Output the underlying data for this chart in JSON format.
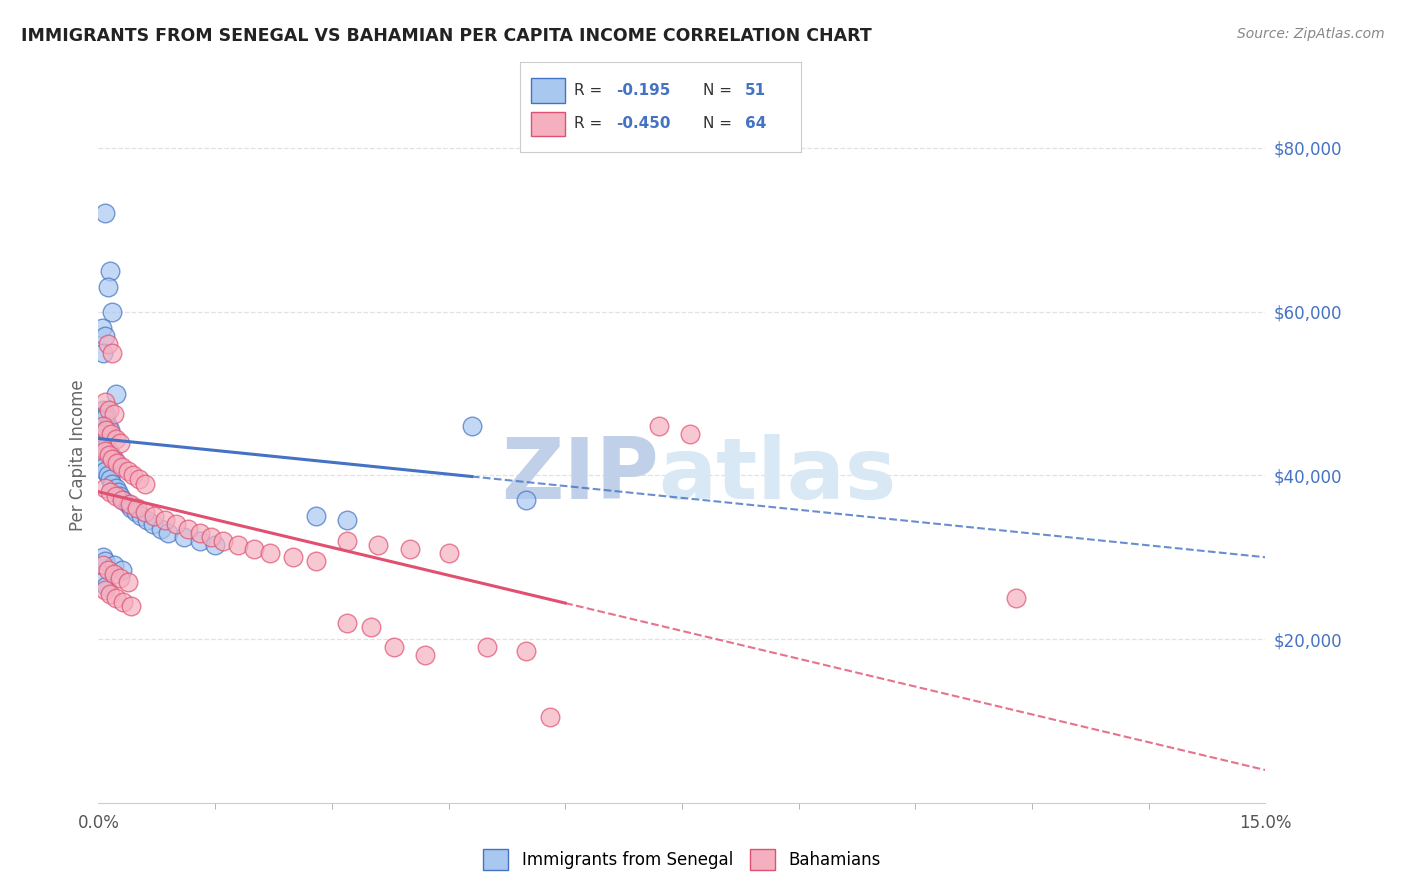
{
  "title": "IMMIGRANTS FROM SENEGAL VS BAHAMIAN PER CAPITA INCOME CORRELATION CHART",
  "source": "Source: ZipAtlas.com",
  "ylabel": "Per Capita Income",
  "xlim": [
    0.0,
    15.0
  ],
  "ylim": [
    0,
    85000
  ],
  "yticks": [
    0,
    20000,
    40000,
    60000,
    80000
  ],
  "ytick_labels": [
    "",
    "$20,000",
    "$40,000",
    "$60,000",
    "$80,000"
  ],
  "blue_color": "#a8c8f0",
  "pink_color": "#f5b0c0",
  "blue_line_color": "#4472c4",
  "pink_line_color": "#e05070",
  "blue_trend_x0": 0.0,
  "blue_trend_y0": 44500,
  "blue_trend_x1": 15.0,
  "blue_trend_y1": 30000,
  "blue_solid_end": 4.8,
  "pink_trend_x0": 0.0,
  "pink_trend_y0": 38000,
  "pink_trend_x1": 15.0,
  "pink_trend_y1": 4000,
  "pink_solid_end": 6.0,
  "blue_scatter": [
    [
      0.08,
      72000
    ],
    [
      0.15,
      65000
    ],
    [
      0.12,
      63000
    ],
    [
      0.18,
      60000
    ],
    [
      0.05,
      58000
    ],
    [
      0.08,
      57000
    ],
    [
      0.06,
      55000
    ],
    [
      0.22,
      50000
    ],
    [
      0.06,
      48000
    ],
    [
      0.1,
      47500
    ],
    [
      0.08,
      47000
    ],
    [
      0.12,
      46000
    ],
    [
      0.15,
      45500
    ],
    [
      0.04,
      45000
    ],
    [
      0.06,
      44500
    ],
    [
      0.08,
      44000
    ],
    [
      0.1,
      43500
    ],
    [
      0.13,
      43000
    ],
    [
      0.16,
      42500
    ],
    [
      0.2,
      42000
    ],
    [
      0.04,
      41500
    ],
    [
      0.07,
      41000
    ],
    [
      0.09,
      40500
    ],
    [
      0.12,
      40000
    ],
    [
      0.15,
      39500
    ],
    [
      0.18,
      39000
    ],
    [
      0.22,
      38500
    ],
    [
      0.25,
      38000
    ],
    [
      0.28,
      37500
    ],
    [
      0.32,
      37000
    ],
    [
      0.38,
      36500
    ],
    [
      0.42,
      36000
    ],
    [
      0.48,
      35500
    ],
    [
      0.55,
      35000
    ],
    [
      0.62,
      34500
    ],
    [
      0.7,
      34000
    ],
    [
      0.8,
      33500
    ],
    [
      0.9,
      33000
    ],
    [
      1.1,
      32500
    ],
    [
      1.3,
      32000
    ],
    [
      1.5,
      31500
    ],
    [
      0.06,
      30000
    ],
    [
      0.09,
      29500
    ],
    [
      0.2,
      29000
    ],
    [
      0.3,
      28500
    ],
    [
      2.8,
      35000
    ],
    [
      3.2,
      34500
    ],
    [
      4.8,
      46000
    ],
    [
      0.05,
      27000
    ],
    [
      0.1,
      26500
    ],
    [
      5.5,
      37000
    ]
  ],
  "pink_scatter": [
    [
      0.12,
      56000
    ],
    [
      0.18,
      55000
    ],
    [
      0.08,
      49000
    ],
    [
      0.14,
      48000
    ],
    [
      0.2,
      47500
    ],
    [
      0.06,
      46000
    ],
    [
      0.1,
      45500
    ],
    [
      0.16,
      45000
    ],
    [
      0.22,
      44500
    ],
    [
      0.28,
      44000
    ],
    [
      0.04,
      43500
    ],
    [
      0.08,
      43000
    ],
    [
      0.13,
      42500
    ],
    [
      0.18,
      42000
    ],
    [
      0.24,
      41500
    ],
    [
      0.3,
      41000
    ],
    [
      0.38,
      40500
    ],
    [
      0.45,
      40000
    ],
    [
      0.52,
      39500
    ],
    [
      0.6,
      39000
    ],
    [
      0.08,
      38500
    ],
    [
      0.15,
      38000
    ],
    [
      0.22,
      37500
    ],
    [
      0.3,
      37000
    ],
    [
      0.4,
      36500
    ],
    [
      0.5,
      36000
    ],
    [
      0.6,
      35500
    ],
    [
      0.72,
      35000
    ],
    [
      0.85,
      34500
    ],
    [
      1.0,
      34000
    ],
    [
      1.15,
      33500
    ],
    [
      1.3,
      33000
    ],
    [
      1.45,
      32500
    ],
    [
      1.6,
      32000
    ],
    [
      1.8,
      31500
    ],
    [
      2.0,
      31000
    ],
    [
      2.2,
      30500
    ],
    [
      2.5,
      30000
    ],
    [
      2.8,
      29500
    ],
    [
      0.06,
      29000
    ],
    [
      0.12,
      28500
    ],
    [
      0.2,
      28000
    ],
    [
      0.28,
      27500
    ],
    [
      0.38,
      27000
    ],
    [
      3.2,
      32000
    ],
    [
      3.6,
      31500
    ],
    [
      4.0,
      31000
    ],
    [
      4.5,
      30500
    ],
    [
      0.08,
      26000
    ],
    [
      0.15,
      25500
    ],
    [
      0.22,
      25000
    ],
    [
      0.32,
      24500
    ],
    [
      0.42,
      24000
    ],
    [
      3.2,
      22000
    ],
    [
      3.5,
      21500
    ],
    [
      5.0,
      19000
    ],
    [
      5.5,
      18500
    ],
    [
      5.8,
      10500
    ],
    [
      3.8,
      19000
    ],
    [
      4.2,
      18000
    ],
    [
      11.8,
      25000
    ],
    [
      7.2,
      46000
    ],
    [
      7.6,
      45000
    ]
  ],
  "watermark_zip": "ZIP",
  "watermark_atlas": "atlas",
  "watermark_color": "#c8d8ee",
  "background_color": "#ffffff",
  "grid_color": "#e0e0e8"
}
